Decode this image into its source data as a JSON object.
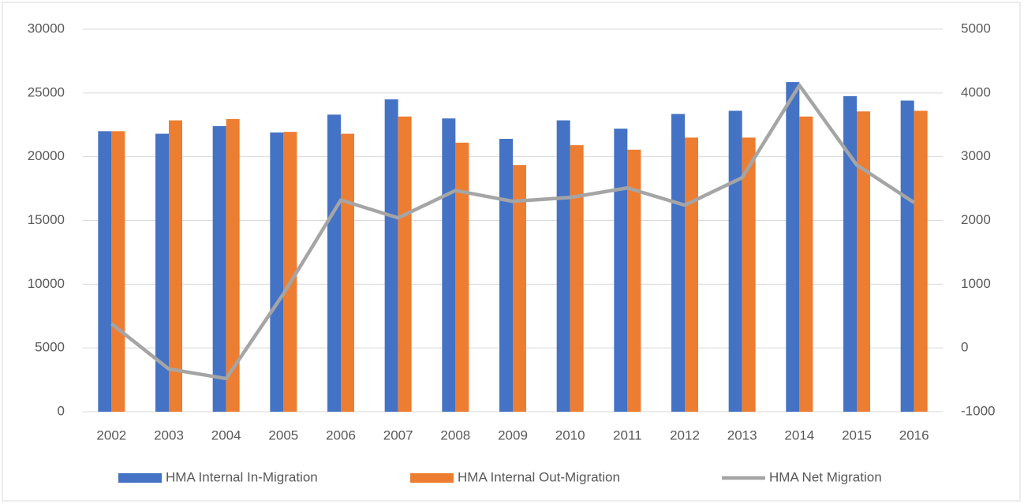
{
  "chart_data": {
    "type": "bar_line",
    "categories": [
      "2002",
      "2003",
      "2004",
      "2005",
      "2006",
      "2007",
      "2008",
      "2009",
      "2010",
      "2011",
      "2012",
      "2013",
      "2014",
      "2015",
      "2016"
    ],
    "series": [
      {
        "name": "HMA Internal In-Migration",
        "color": "#4472c4",
        "type": "bar",
        "values": [
          22000,
          21800,
          22400,
          21900,
          23300,
          24500,
          23000,
          21400,
          22850,
          22200,
          23350,
          23600,
          25850,
          24750,
          24400
        ]
      },
      {
        "name": "HMA Internal Out-Migration",
        "color": "#ed7d31",
        "type": "bar",
        "values": [
          22000,
          22850,
          22950,
          21950,
          21800,
          23150,
          21100,
          19350,
          20900,
          20550,
          21500,
          21500,
          23150,
          23550,
          23600
        ]
      },
      {
        "name": "HMA Net Migration",
        "color": "#a5a5a5",
        "type": "line",
        "axis": "y2",
        "values": [
          380,
          -330,
          -480,
          850,
          2320,
          2040,
          2470,
          2300,
          2360,
          2510,
          2240,
          2670,
          4120,
          2870,
          2280
        ]
      }
    ],
    "ylim": [
      0,
      30000
    ],
    "yticks": [
      0,
      5000,
      10000,
      15000,
      20000,
      25000,
      30000
    ],
    "y2lim": [
      -1000,
      5000
    ],
    "y2ticks": [
      -1000,
      0,
      1000,
      2000,
      3000,
      4000,
      5000
    ],
    "grid": true,
    "legend": "bottom"
  }
}
